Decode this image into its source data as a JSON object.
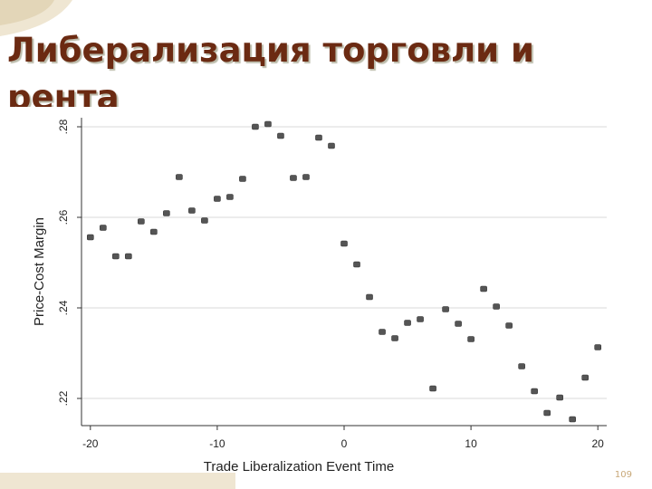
{
  "chart_data": {
    "type": "scatter",
    "title": "Либерализация торговли и рента",
    "x_label": "Trade Liberalization Event Time",
    "y_label": "Price-Cost Margin",
    "x": [
      -20,
      -19,
      -18,
      -17,
      -16,
      -15,
      -14,
      -13,
      -12,
      -11,
      -10,
      -9,
      -8,
      -7,
      -6,
      -5,
      -4,
      -3,
      -2,
      -1,
      0,
      1,
      2,
      3,
      4,
      5,
      6,
      7,
      8,
      9,
      10,
      11,
      12,
      13,
      14,
      15,
      16,
      17,
      18,
      19,
      20
    ],
    "values": [
      0.2556,
      0.2577,
      0.2514,
      0.2514,
      0.2591,
      0.2568,
      0.2609,
      0.2689,
      0.2615,
      0.2593,
      0.2641,
      0.2645,
      0.2685,
      0.28,
      0.2806,
      0.278,
      0.2687,
      0.2689,
      0.2776,
      0.2758,
      0.2542,
      0.2496,
      0.2424,
      0.2347,
      0.2333,
      0.2367,
      0.2375,
      0.2222,
      0.2397,
      0.2365,
      0.2331,
      0.2442,
      0.2403,
      0.2361,
      0.2271,
      0.2216,
      0.2168,
      0.2202,
      0.2154,
      0.2246,
      0.2313
    ],
    "color": "#555555",
    "xlim": [
      -20.7,
      20.7
    ],
    "ylim": [
      0.214,
      0.282
    ],
    "xticks": [
      -20,
      -10,
      0,
      10,
      20
    ],
    "yticks": [
      {
        "value": 0.22,
        "label": ".22"
      },
      {
        "value": 0.24,
        "label": ".24"
      },
      {
        "value": 0.26,
        "label": ".26"
      },
      {
        "value": 0.28,
        "label": ".28"
      }
    ],
    "grid": true
  },
  "page_number": "109"
}
